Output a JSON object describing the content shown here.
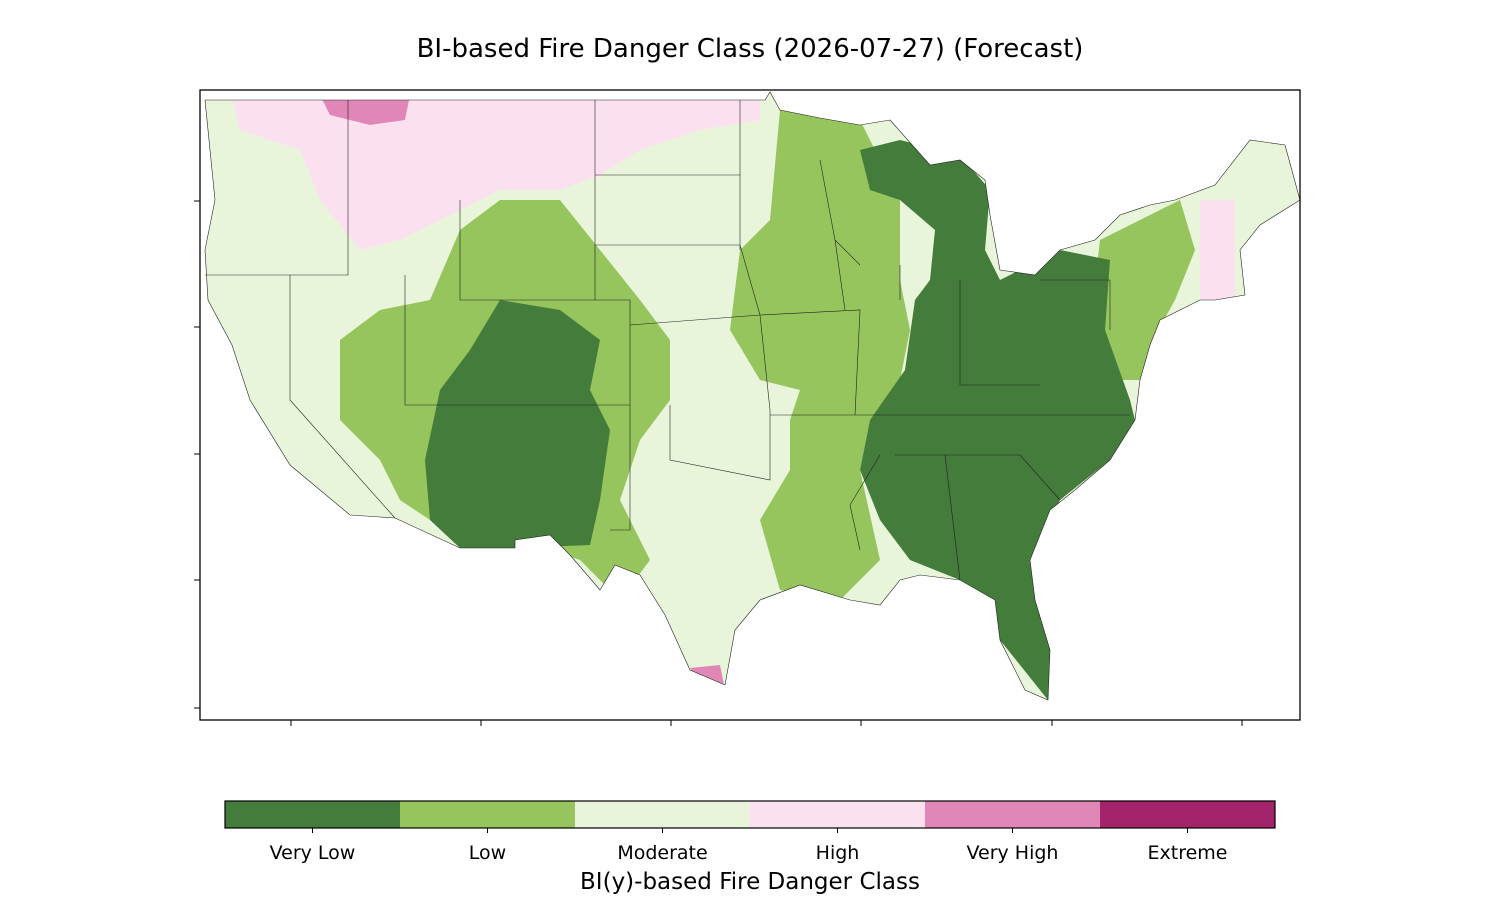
{
  "title": "BI-based Fire Danger Class (2026-07-27) (Forecast)",
  "colorbar": {
    "label": "BI(y)-based Fire Danger Class",
    "classes": [
      {
        "name": "Very Low",
        "color": "#437c3b"
      },
      {
        "name": "Low",
        "color": "#95c55c"
      },
      {
        "name": "Moderate",
        "color": "#e8f5da"
      },
      {
        "name": "High",
        "color": "#fbe1ef"
      },
      {
        "name": "Very High",
        "color": "#e087b8"
      },
      {
        "name": "Extreme",
        "color": "#a3246b"
      }
    ]
  }
}
